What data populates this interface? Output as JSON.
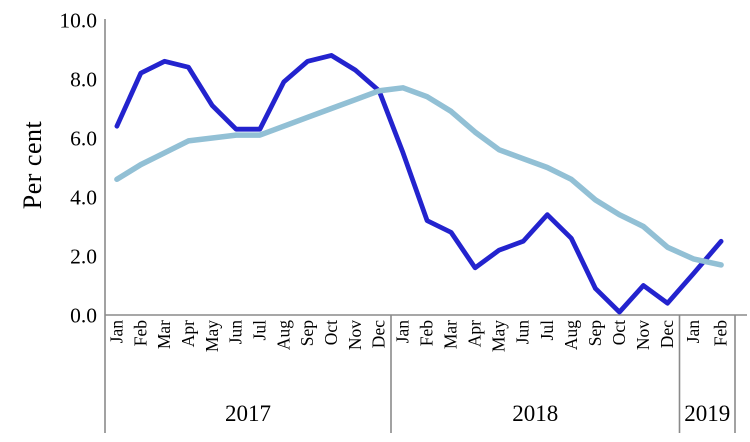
{
  "page": {
    "background": "#ffffff"
  },
  "chart_data": {
    "type": "line",
    "title": "",
    "xlabel": "",
    "ylabel": "Per cent",
    "grid": "off",
    "legend": "none",
    "axis_color": "#8a8a8a",
    "text_color": "#000000",
    "y_axis": {
      "min": 0,
      "max": 10,
      "tick_step": 2,
      "tick_labels": [
        "0.0",
        "2.0",
        "4.0",
        "6.0",
        "8.0",
        "10.0"
      ]
    },
    "x_axis": {
      "year_groups": [
        {
          "label": "2017",
          "months": [
            "Jan",
            "Feb",
            "Mar",
            "Apr",
            "May",
            "Jun",
            "Jul",
            "Aug",
            "Sep",
            "Oct",
            "Nov",
            "Dec"
          ]
        },
        {
          "label": "2018",
          "months": [
            "Jan",
            "Feb",
            "Mar",
            "Apr",
            "May",
            "Jun",
            "Jul",
            "Aug",
            "Sep",
            "Oct",
            "Nov",
            "Dec"
          ]
        },
        {
          "label": "2019",
          "months": [
            "Jan",
            "Feb"
          ]
        }
      ]
    },
    "categories": [
      "Jan",
      "Feb",
      "Mar",
      "Apr",
      "May",
      "Jun",
      "Jul",
      "Aug",
      "Sep",
      "Oct",
      "Nov",
      "Dec",
      "Jan",
      "Feb",
      "Mar",
      "Apr",
      "May",
      "Jun",
      "Jul",
      "Aug",
      "Sep",
      "Oct",
      "Nov",
      "Dec",
      "Jan",
      "Feb"
    ],
    "series": [
      {
        "id": "dark_blue_line",
        "color": "#2323ce",
        "stroke_width": 4.8,
        "z": 1,
        "values": [
          6.4,
          8.2,
          8.6,
          8.4,
          7.1,
          6.3,
          6.3,
          7.9,
          8.6,
          8.8,
          8.3,
          7.6,
          5.5,
          3.2,
          2.8,
          1.6,
          2.2,
          2.5,
          3.4,
          2.6,
          0.9,
          0.1,
          1.0,
          0.4,
          1.4,
          2.5
        ]
      },
      {
        "id": "light_blue_line",
        "color": "#92c0d5",
        "stroke_width": 5.5,
        "z": 2,
        "values": [
          4.6,
          5.1,
          5.5,
          5.9,
          6.0,
          6.1,
          6.1,
          6.4,
          6.7,
          7.0,
          7.3,
          7.6,
          7.7,
          7.4,
          6.9,
          6.2,
          5.6,
          5.3,
          5.0,
          4.6,
          3.9,
          3.4,
          3.0,
          2.3,
          1.9,
          1.7
        ]
      }
    ]
  }
}
